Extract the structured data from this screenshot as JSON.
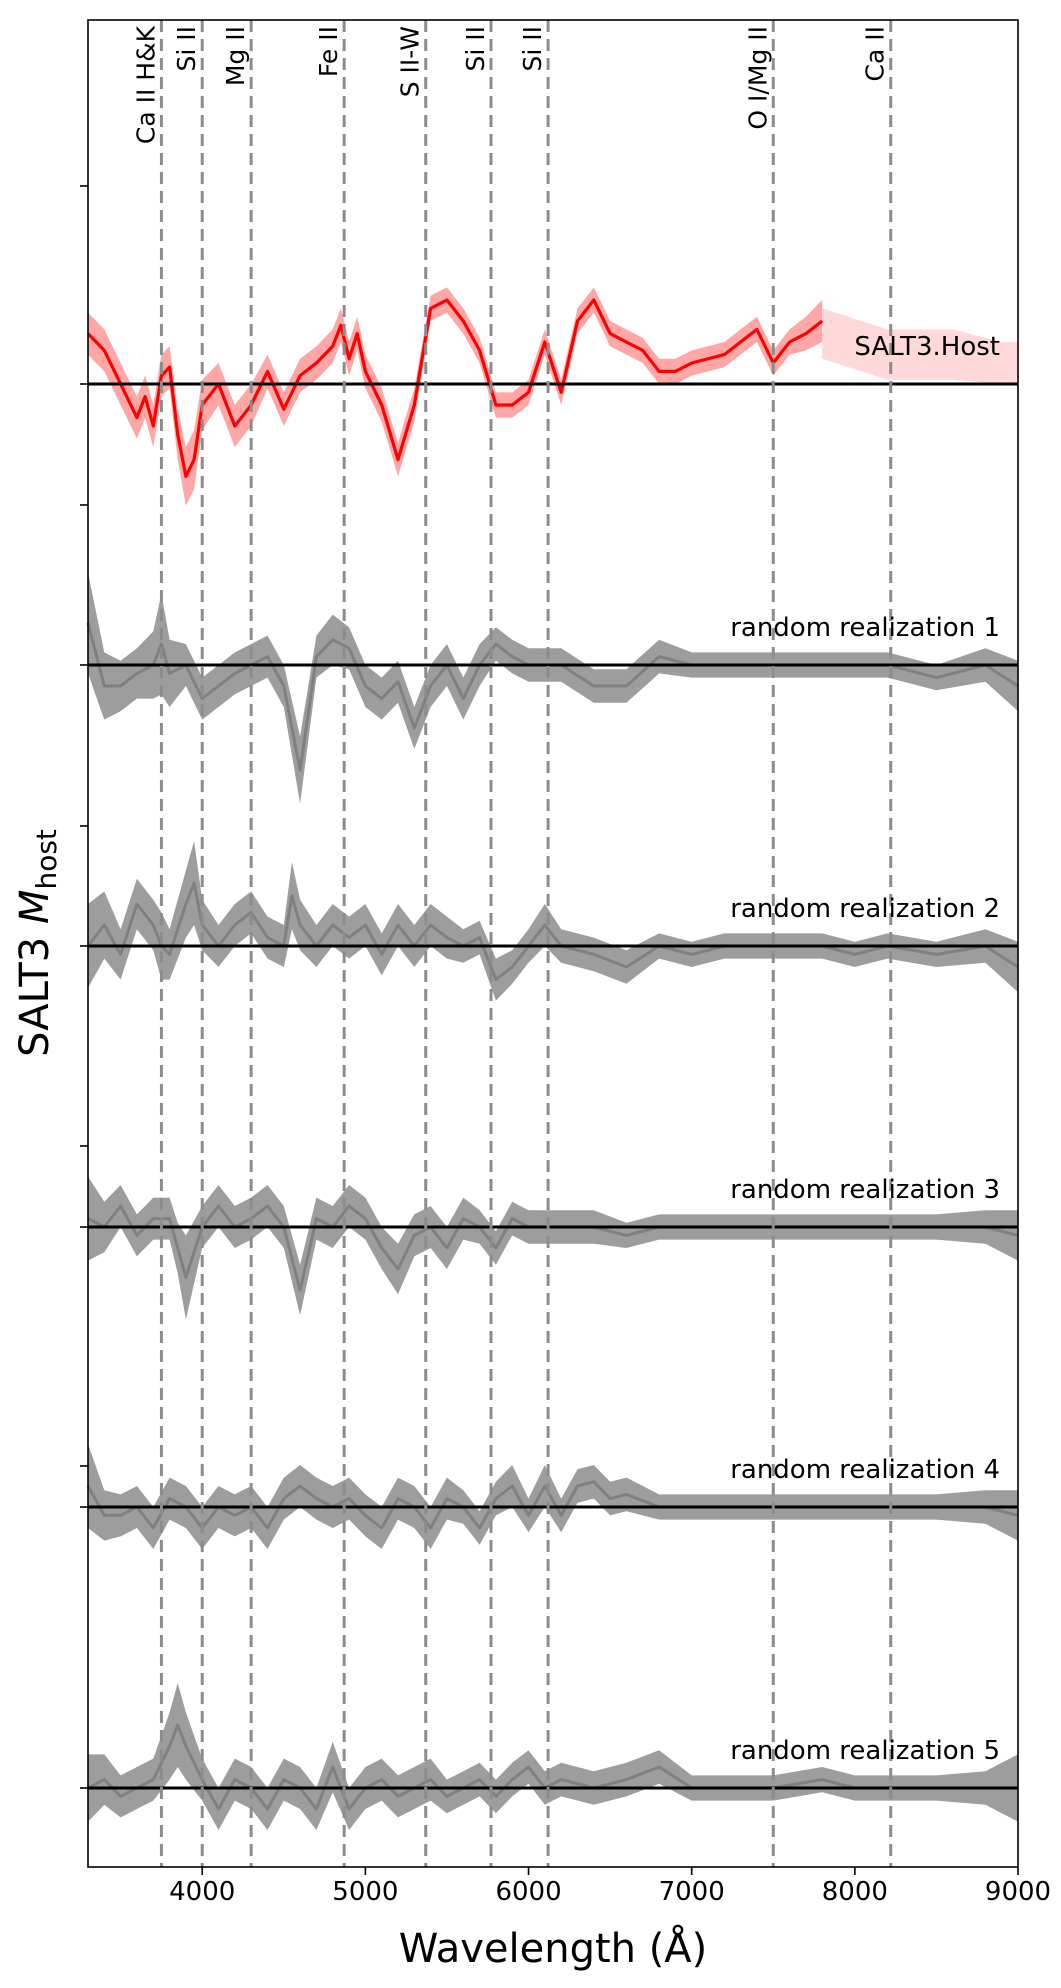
{
  "chart_data": {
    "type": "line",
    "xlabel": "Wavelength (Å)",
    "ylabel_main": "SALT3 ",
    "ylabel_italic": "M",
    "ylabel_sub": "host",
    "xlim": [
      3300,
      9000
    ],
    "xticks": [
      4000,
      5000,
      6000,
      7000,
      8000,
      9000
    ],
    "xtick_labels": [
      "4000",
      "5000",
      "6000",
      "7000",
      "8000",
      "9000"
    ],
    "grid": false,
    "colors": {
      "host_line": "#ff0000",
      "host_band": "#ff8080",
      "realization_line": "#808080",
      "realization_band": "#8c8c8c",
      "baseline": "#000000",
      "feature_line": "#8c8c8c"
    },
    "feature_lines": [
      {
        "label": "Ca II H&K",
        "x": 3750
      },
      {
        "label": "Si II",
        "x": 4000
      },
      {
        "label": "Mg II",
        "x": 4300
      },
      {
        "label": "Fe II",
        "x": 4870
      },
      {
        "label": "S II-W",
        "x": 5370
      },
      {
        "label": "Si II",
        "x": 5770
      },
      {
        "label": "Si II",
        "x": 6120
      },
      {
        "label": "O I/Mg II",
        "x": 7500
      },
      {
        "label": "Ca II",
        "x": 8220
      }
    ],
    "series": [
      {
        "name": "SALT3.Host",
        "color": "#ff0000",
        "x": [
          3300,
          3400,
          3500,
          3600,
          3650,
          3700,
          3750,
          3800,
          3850,
          3900,
          3950,
          4000,
          4100,
          4200,
          4300,
          4400,
          4500,
          4600,
          4700,
          4800,
          4850,
          4900,
          4950,
          5000,
          5100,
          5200,
          5300,
          5400,
          5500,
          5600,
          5700,
          5800,
          5900,
          6000,
          6100,
          6200,
          6300,
          6400,
          6500,
          6600,
          6700,
          6800,
          6900,
          7000,
          7200,
          7400,
          7500,
          7600,
          7700,
          7800
        ],
        "y": [
          0.12,
          0.08,
          0.0,
          -0.08,
          -0.03,
          -0.1,
          0.02,
          0.04,
          -0.12,
          -0.22,
          -0.18,
          -0.05,
          0.0,
          -0.1,
          -0.05,
          0.03,
          -0.06,
          0.02,
          0.05,
          0.09,
          0.14,
          0.06,
          0.12,
          0.03,
          -0.05,
          -0.18,
          -0.05,
          0.18,
          0.2,
          0.15,
          0.08,
          -0.05,
          -0.05,
          -0.02,
          0.1,
          -0.02,
          0.15,
          0.2,
          0.12,
          0.1,
          0.08,
          0.03,
          0.03,
          0.05,
          0.07,
          0.13,
          0.05,
          0.1,
          0.12,
          0.15
        ],
        "unc": [
          0.05,
          0.05,
          0.05,
          0.05,
          0.05,
          0.05,
          0.05,
          0.05,
          0.06,
          0.07,
          0.07,
          0.06,
          0.05,
          0.05,
          0.05,
          0.04,
          0.04,
          0.04,
          0.04,
          0.04,
          0.04,
          0.04,
          0.04,
          0.04,
          0.04,
          0.04,
          0.04,
          0.03,
          0.03,
          0.03,
          0.03,
          0.03,
          0.03,
          0.03,
          0.03,
          0.03,
          0.03,
          0.03,
          0.03,
          0.03,
          0.03,
          0.03,
          0.03,
          0.03,
          0.03,
          0.03,
          0.03,
          0.03,
          0.04,
          0.05
        ],
        "faint_tail": {
          "x": [
            7800,
            8200,
            8600,
            8900,
            9000
          ],
          "y": [
            0.12,
            0.07,
            0.07,
            0.05,
            0.05
          ],
          "unc": [
            0.06,
            0.06,
            0.06,
            0.05,
            0.05
          ]
        }
      },
      {
        "name": "random realization 1",
        "color": "#808080",
        "x": [
          3300,
          3400,
          3500,
          3600,
          3700,
          3750,
          3800,
          3900,
          4000,
          4100,
          4200,
          4300,
          4400,
          4500,
          4600,
          4700,
          4800,
          4900,
          5000,
          5100,
          5200,
          5300,
          5400,
          5500,
          5600,
          5700,
          5800,
          5900,
          6000,
          6200,
          6400,
          6600,
          6800,
          7000,
          7200,
          7500,
          7800,
          8000,
          8200,
          8500,
          8800,
          9000
        ],
        "y": [
          0.1,
          -0.05,
          -0.05,
          -0.02,
          0.0,
          0.05,
          -0.02,
          0.0,
          -0.08,
          -0.05,
          -0.02,
          0.0,
          0.02,
          -0.05,
          -0.25,
          0.02,
          0.06,
          0.04,
          -0.05,
          -0.08,
          -0.04,
          -0.15,
          -0.05,
          0.0,
          -0.08,
          0.0,
          0.05,
          0.02,
          0.0,
          0.0,
          -0.05,
          -0.05,
          0.02,
          0.0,
          0.0,
          0.0,
          0.0,
          0.0,
          0.0,
          -0.03,
          0.0,
          -0.05
        ],
        "unc": [
          0.12,
          0.08,
          0.06,
          0.06,
          0.08,
          0.12,
          0.08,
          0.05,
          0.05,
          0.05,
          0.05,
          0.05,
          0.05,
          0.05,
          0.08,
          0.05,
          0.06,
          0.05,
          0.05,
          0.05,
          0.05,
          0.05,
          0.05,
          0.05,
          0.05,
          0.05,
          0.04,
          0.04,
          0.04,
          0.04,
          0.04,
          0.04,
          0.04,
          0.03,
          0.03,
          0.03,
          0.03,
          0.03,
          0.03,
          0.03,
          0.04,
          0.06
        ]
      },
      {
        "name": "random realization 2",
        "color": "#808080",
        "x": [
          3300,
          3400,
          3500,
          3600,
          3700,
          3750,
          3800,
          3900,
          3950,
          4000,
          4100,
          4200,
          4300,
          4400,
          4500,
          4550,
          4600,
          4700,
          4800,
          4900,
          5000,
          5100,
          5200,
          5300,
          5400,
          5500,
          5600,
          5700,
          5800,
          5900,
          6000,
          6100,
          6200,
          6400,
          6600,
          6800,
          7000,
          7200,
          7500,
          7800,
          8000,
          8200,
          8500,
          8800,
          9000
        ],
        "y": [
          0.0,
          0.05,
          -0.02,
          0.1,
          0.05,
          0.0,
          -0.02,
          0.1,
          0.15,
          0.05,
          0.0,
          0.05,
          0.08,
          0.02,
          0.0,
          0.12,
          0.05,
          0.0,
          0.05,
          0.02,
          0.05,
          -0.02,
          0.05,
          0.0,
          0.05,
          0.02,
          0.0,
          0.02,
          -0.08,
          -0.05,
          0.0,
          0.05,
          0.0,
          -0.02,
          -0.05,
          0.0,
          -0.02,
          0.0,
          0.0,
          0.0,
          -0.02,
          0.0,
          -0.02,
          0.0,
          -0.05
        ],
        "unc": [
          0.1,
          0.08,
          0.06,
          0.06,
          0.06,
          0.08,
          0.06,
          0.08,
          0.1,
          0.06,
          0.05,
          0.05,
          0.05,
          0.05,
          0.05,
          0.08,
          0.06,
          0.05,
          0.05,
          0.05,
          0.05,
          0.05,
          0.05,
          0.05,
          0.05,
          0.05,
          0.04,
          0.04,
          0.05,
          0.04,
          0.04,
          0.05,
          0.04,
          0.04,
          0.04,
          0.03,
          0.03,
          0.03,
          0.03,
          0.03,
          0.03,
          0.03,
          0.03,
          0.04,
          0.06
        ]
      },
      {
        "name": "random realization 3",
        "color": "#808080",
        "x": [
          3300,
          3400,
          3500,
          3600,
          3700,
          3800,
          3850,
          3900,
          4000,
          4100,
          4200,
          4300,
          4400,
          4500,
          4600,
          4700,
          4800,
          4900,
          5000,
          5100,
          5200,
          5300,
          5400,
          5500,
          5600,
          5700,
          5800,
          5900,
          6000,
          6200,
          6400,
          6600,
          6800,
          7000,
          7200,
          7500,
          7800,
          8000,
          8200,
          8500,
          8800,
          9000
        ],
        "y": [
          0.02,
          0.0,
          0.05,
          -0.02,
          0.02,
          0.02,
          -0.05,
          -0.12,
          0.0,
          0.05,
          0.0,
          0.02,
          0.05,
          0.0,
          -0.15,
          0.02,
          0.0,
          0.05,
          0.02,
          -0.05,
          -0.1,
          -0.02,
          0.0,
          -0.05,
          0.02,
          0.0,
          -0.05,
          0.02,
          0.0,
          0.0,
          0.0,
          -0.02,
          0.0,
          0.0,
          0.0,
          0.0,
          0.0,
          0.0,
          0.0,
          0.0,
          0.0,
          -0.02
        ],
        "unc": [
          0.1,
          0.06,
          0.05,
          0.05,
          0.05,
          0.05,
          0.06,
          0.1,
          0.05,
          0.05,
          0.05,
          0.05,
          0.05,
          0.05,
          0.06,
          0.05,
          0.05,
          0.05,
          0.05,
          0.05,
          0.06,
          0.05,
          0.05,
          0.05,
          0.05,
          0.04,
          0.04,
          0.04,
          0.04,
          0.04,
          0.04,
          0.03,
          0.03,
          0.03,
          0.03,
          0.03,
          0.03,
          0.03,
          0.03,
          0.03,
          0.04,
          0.06
        ]
      },
      {
        "name": "random realization 4",
        "color": "#808080",
        "x": [
          3300,
          3400,
          3500,
          3600,
          3700,
          3800,
          3900,
          4000,
          4100,
          4200,
          4300,
          4400,
          4500,
          4600,
          4700,
          4800,
          4900,
          5000,
          5100,
          5200,
          5300,
          5400,
          5500,
          5600,
          5700,
          5800,
          5900,
          6000,
          6100,
          6200,
          6300,
          6400,
          6500,
          6600,
          6800,
          7000,
          7200,
          7500,
          7800,
          8000,
          8200,
          8500,
          8800,
          9000
        ],
        "y": [
          0.05,
          -0.02,
          -0.02,
          0.0,
          -0.05,
          0.02,
          0.0,
          -0.05,
          0.0,
          -0.02,
          0.0,
          -0.05,
          0.02,
          0.05,
          0.02,
          0.0,
          0.02,
          -0.02,
          -0.05,
          0.02,
          0.0,
          -0.05,
          0.02,
          0.0,
          -0.05,
          0.02,
          0.05,
          -0.02,
          0.05,
          -0.02,
          0.05,
          0.06,
          0.02,
          0.03,
          0.0,
          0.0,
          0.0,
          0.0,
          0.0,
          0.0,
          0.0,
          0.0,
          0.0,
          -0.02
        ],
        "unc": [
          0.1,
          0.06,
          0.05,
          0.05,
          0.05,
          0.05,
          0.05,
          0.05,
          0.05,
          0.05,
          0.05,
          0.05,
          0.05,
          0.05,
          0.05,
          0.05,
          0.05,
          0.05,
          0.05,
          0.05,
          0.05,
          0.05,
          0.05,
          0.04,
          0.04,
          0.04,
          0.05,
          0.04,
          0.05,
          0.04,
          0.04,
          0.04,
          0.04,
          0.04,
          0.03,
          0.03,
          0.03,
          0.03,
          0.03,
          0.03,
          0.03,
          0.03,
          0.04,
          0.06
        ]
      },
      {
        "name": "random realization 5",
        "color": "#808080",
        "x": [
          3300,
          3400,
          3500,
          3600,
          3700,
          3800,
          3850,
          3900,
          4000,
          4100,
          4200,
          4300,
          4400,
          4500,
          4600,
          4700,
          4800,
          4900,
          5000,
          5100,
          5200,
          5300,
          5400,
          5500,
          5600,
          5700,
          5800,
          5900,
          6000,
          6100,
          6200,
          6400,
          6600,
          6800,
          7000,
          7200,
          7500,
          7800,
          8000,
          8200,
          8500,
          8800,
          9000
        ],
        "y": [
          0.0,
          0.02,
          -0.02,
          0.0,
          0.02,
          0.1,
          0.15,
          0.1,
          0.02,
          -0.05,
          0.02,
          0.0,
          -0.05,
          0.02,
          0.0,
          -0.05,
          0.05,
          -0.05,
          0.0,
          0.02,
          -0.02,
          0.0,
          0.02,
          -0.02,
          0.0,
          0.02,
          -0.02,
          0.02,
          0.05,
          0.0,
          0.02,
          0.0,
          0.02,
          0.05,
          0.0,
          0.0,
          0.0,
          0.02,
          0.0,
          0.0,
          0.0,
          0.0,
          0.0
        ],
        "unc": [
          0.08,
          0.06,
          0.05,
          0.05,
          0.05,
          0.08,
          0.1,
          0.08,
          0.05,
          0.05,
          0.05,
          0.05,
          0.05,
          0.05,
          0.05,
          0.05,
          0.06,
          0.05,
          0.05,
          0.05,
          0.05,
          0.05,
          0.05,
          0.04,
          0.04,
          0.04,
          0.04,
          0.04,
          0.04,
          0.04,
          0.04,
          0.04,
          0.04,
          0.04,
          0.03,
          0.03,
          0.03,
          0.03,
          0.03,
          0.03,
          0.03,
          0.04,
          0.08
        ]
      }
    ]
  }
}
